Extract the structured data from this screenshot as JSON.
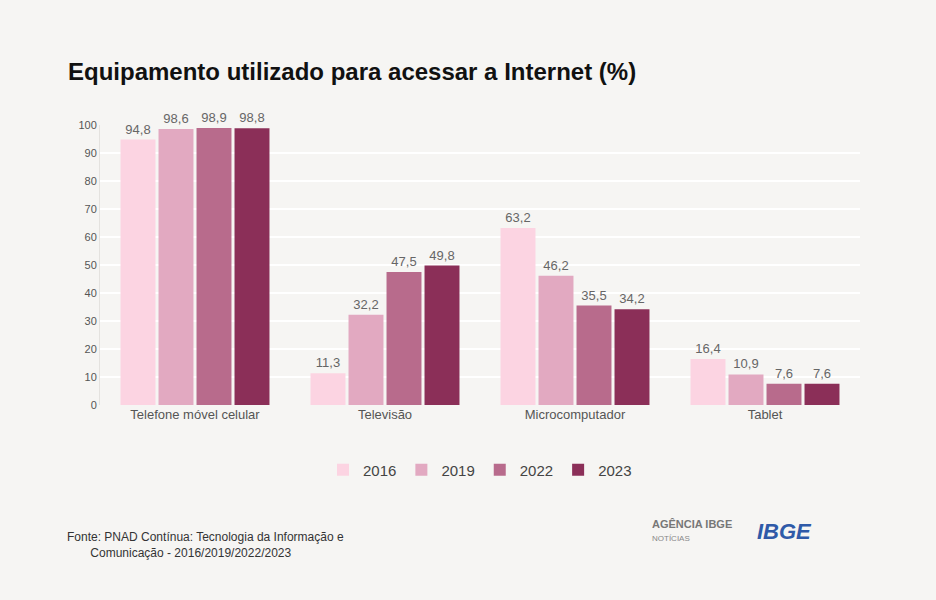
{
  "chart_data": {
    "type": "bar",
    "title": "Equipamento utilizado para acessar a Internet (%)",
    "categories": [
      "Telefone móvel celular",
      "Televisão",
      "Microcomputador",
      "Tablet"
    ],
    "series": [
      {
        "name": "2016",
        "color": "#fcd4e2",
        "values": [
          94.8,
          11.3,
          63.2,
          16.4
        ],
        "value_labels": [
          "94,8",
          "11,3",
          "63,2",
          "16,4"
        ]
      },
      {
        "name": "2019",
        "color": "#e2a9c1",
        "values": [
          98.6,
          32.2,
          46.2,
          10.9
        ],
        "value_labels": [
          "98,6",
          "32,2",
          "46,2",
          "10,9"
        ]
      },
      {
        "name": "2022",
        "color": "#b86b8c",
        "values": [
          98.9,
          47.5,
          35.5,
          7.6
        ],
        "value_labels": [
          "98,9",
          "47,5",
          "35,5",
          "7,6"
        ]
      },
      {
        "name": "2023",
        "color": "#8b2f58",
        "values": [
          98.8,
          49.8,
          34.2,
          7.6
        ],
        "value_labels": [
          "98,8",
          "49,8",
          "34,2",
          "7,6"
        ]
      }
    ],
    "ylim": [
      0,
      100
    ],
    "yticks": [
      0,
      10,
      20,
      30,
      40,
      50,
      60,
      70,
      80,
      90,
      100
    ],
    "grid": true,
    "legend": "bottom",
    "data_labels": true,
    "annotations": [
      "Fonte: PNAD Contínua: Tecnologia da Informação e",
      "Comunicação - 2016/2019/2022/2023",
      "AGÊNCIA IBGE",
      "NOTÍCIAS",
      "IBGE"
    ]
  }
}
